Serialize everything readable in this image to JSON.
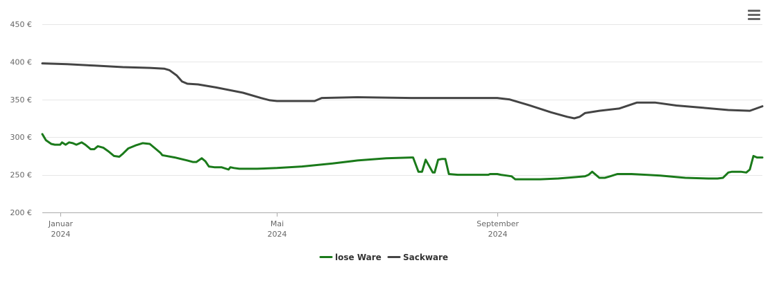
{
  "menu": {
    "icon": "hamburger-menu-icon"
  },
  "chart_data": {
    "type": "line",
    "title": "",
    "xlabel": "",
    "ylabel": "",
    "ylim": [
      200,
      450
    ],
    "yticks": [
      {
        "value": 200,
        "label": "200 €"
      },
      {
        "value": 250,
        "label": "250 €"
      },
      {
        "value": 300,
        "label": "300 €"
      },
      {
        "value": 350,
        "label": "350 €"
      },
      {
        "value": 400,
        "label": "400 €"
      },
      {
        "value": 450,
        "label": "450 €"
      }
    ],
    "xlim": [
      "2023-12-22",
      "2025-01-27"
    ],
    "xticks": [
      {
        "value": "2024-01-01",
        "month": "Januar",
        "year": "2024"
      },
      {
        "value": "2024-05-01",
        "month": "Mai",
        "year": "2024"
      },
      {
        "value": "2024-09-01",
        "month": "September",
        "year": "2024"
      }
    ],
    "grid": true,
    "legend_position": "bottom-center",
    "series": [
      {
        "name": "lose Ware",
        "color": "#1a7a1a",
        "points": [
          [
            "2023-12-22",
            304
          ],
          [
            "2023-12-24",
            296
          ],
          [
            "2023-12-27",
            291
          ],
          [
            "2023-12-29",
            290
          ],
          [
            "2024-01-01",
            290
          ],
          [
            "2024-01-02",
            293
          ],
          [
            "2024-01-04",
            290
          ],
          [
            "2024-01-06",
            293
          ],
          [
            "2024-01-08",
            292
          ],
          [
            "2024-01-10",
            290
          ],
          [
            "2024-01-13",
            293
          ],
          [
            "2024-01-15",
            290
          ],
          [
            "2024-01-18",
            284
          ],
          [
            "2024-01-20",
            284
          ],
          [
            "2024-01-22",
            288
          ],
          [
            "2024-01-25",
            286
          ],
          [
            "2024-01-28",
            281
          ],
          [
            "2024-01-31",
            275
          ],
          [
            "2024-02-03",
            274
          ],
          [
            "2024-02-05",
            278
          ],
          [
            "2024-02-08",
            285
          ],
          [
            "2024-02-12",
            289
          ],
          [
            "2024-02-16",
            292
          ],
          [
            "2024-02-20",
            291
          ],
          [
            "2024-02-23",
            285
          ],
          [
            "2024-02-26",
            279
          ],
          [
            "2024-02-27",
            276
          ],
          [
            "2024-03-05",
            273
          ],
          [
            "2024-03-12",
            269
          ],
          [
            "2024-03-15",
            267
          ],
          [
            "2024-03-17",
            267
          ],
          [
            "2024-03-20",
            272
          ],
          [
            "2024-03-22",
            268
          ],
          [
            "2024-03-24",
            261
          ],
          [
            "2024-03-27",
            260
          ],
          [
            "2024-03-31",
            260
          ],
          [
            "2024-04-04",
            257
          ],
          [
            "2024-04-05",
            260
          ],
          [
            "2024-04-07",
            259
          ],
          [
            "2024-04-10",
            258
          ],
          [
            "2024-04-20",
            258
          ],
          [
            "2024-05-01",
            259
          ],
          [
            "2024-05-15",
            261
          ],
          [
            "2024-06-01",
            265
          ],
          [
            "2024-06-15",
            269
          ],
          [
            "2024-07-01",
            272
          ],
          [
            "2024-07-15",
            273
          ],
          [
            "2024-07-16",
            273
          ],
          [
            "2024-07-19",
            254
          ],
          [
            "2024-07-21",
            254
          ],
          [
            "2024-07-23",
            270
          ],
          [
            "2024-07-27",
            253
          ],
          [
            "2024-07-28",
            253
          ],
          [
            "2024-07-30",
            270
          ],
          [
            "2024-08-01",
            271
          ],
          [
            "2024-08-03",
            271
          ],
          [
            "2024-08-05",
            251
          ],
          [
            "2024-08-10",
            250
          ],
          [
            "2024-08-20",
            250
          ],
          [
            "2024-08-27",
            250
          ],
          [
            "2024-08-28",
            251
          ],
          [
            "2024-09-01",
            251
          ],
          [
            "2024-09-03",
            250
          ],
          [
            "2024-09-06",
            249
          ],
          [
            "2024-09-09",
            248
          ],
          [
            "2024-09-11",
            244
          ],
          [
            "2024-09-25",
            244
          ],
          [
            "2024-10-05",
            245
          ],
          [
            "2024-10-15",
            247
          ],
          [
            "2024-10-20",
            248
          ],
          [
            "2024-10-22",
            250
          ],
          [
            "2024-10-24",
            254
          ],
          [
            "2024-10-26",
            250
          ],
          [
            "2024-10-28",
            246
          ],
          [
            "2024-10-31",
            246
          ],
          [
            "2024-11-03",
            248
          ],
          [
            "2024-11-07",
            251
          ],
          [
            "2024-11-15",
            251
          ],
          [
            "2024-12-01",
            249
          ],
          [
            "2024-12-15",
            246
          ],
          [
            "2024-12-28",
            245
          ],
          [
            "2025-01-02",
            245
          ],
          [
            "2025-01-05",
            246
          ],
          [
            "2025-01-08",
            253
          ],
          [
            "2025-01-10",
            254
          ],
          [
            "2025-01-15",
            254
          ],
          [
            "2025-01-18",
            253
          ],
          [
            "2025-01-20",
            257
          ],
          [
            "2025-01-22",
            275
          ],
          [
            "2025-01-24",
            273
          ],
          [
            "2025-01-27",
            273
          ]
        ]
      },
      {
        "name": "Sackware",
        "color": "#444444",
        "points": [
          [
            "2023-12-22",
            398
          ],
          [
            "2024-01-05",
            397
          ],
          [
            "2024-01-20",
            395
          ],
          [
            "2024-02-05",
            393
          ],
          [
            "2024-02-20",
            392
          ],
          [
            "2024-02-28",
            391
          ],
          [
            "2024-03-02",
            389
          ],
          [
            "2024-03-06",
            382
          ],
          [
            "2024-03-09",
            374
          ],
          [
            "2024-03-12",
            371
          ],
          [
            "2024-03-18",
            370
          ],
          [
            "2024-03-28",
            366
          ],
          [
            "2024-04-12",
            359
          ],
          [
            "2024-04-22",
            352
          ],
          [
            "2024-04-27",
            349
          ],
          [
            "2024-05-01",
            348
          ],
          [
            "2024-05-15",
            348
          ],
          [
            "2024-05-22",
            348
          ],
          [
            "2024-05-26",
            352
          ],
          [
            "2024-06-15",
            353
          ],
          [
            "2024-07-15",
            352
          ],
          [
            "2024-08-15",
            352
          ],
          [
            "2024-09-01",
            352
          ],
          [
            "2024-09-08",
            350
          ],
          [
            "2024-09-18",
            343
          ],
          [
            "2024-10-01",
            333
          ],
          [
            "2024-10-10",
            327
          ],
          [
            "2024-10-14",
            325
          ],
          [
            "2024-10-17",
            327
          ],
          [
            "2024-10-20",
            332
          ],
          [
            "2024-10-28",
            335
          ],
          [
            "2024-11-08",
            338
          ],
          [
            "2024-11-18",
            346
          ],
          [
            "2024-11-28",
            346
          ],
          [
            "2024-12-10",
            342
          ],
          [
            "2024-12-25",
            339
          ],
          [
            "2025-01-08",
            336
          ],
          [
            "2025-01-20",
            335
          ],
          [
            "2025-01-27",
            341
          ]
        ]
      }
    ]
  }
}
